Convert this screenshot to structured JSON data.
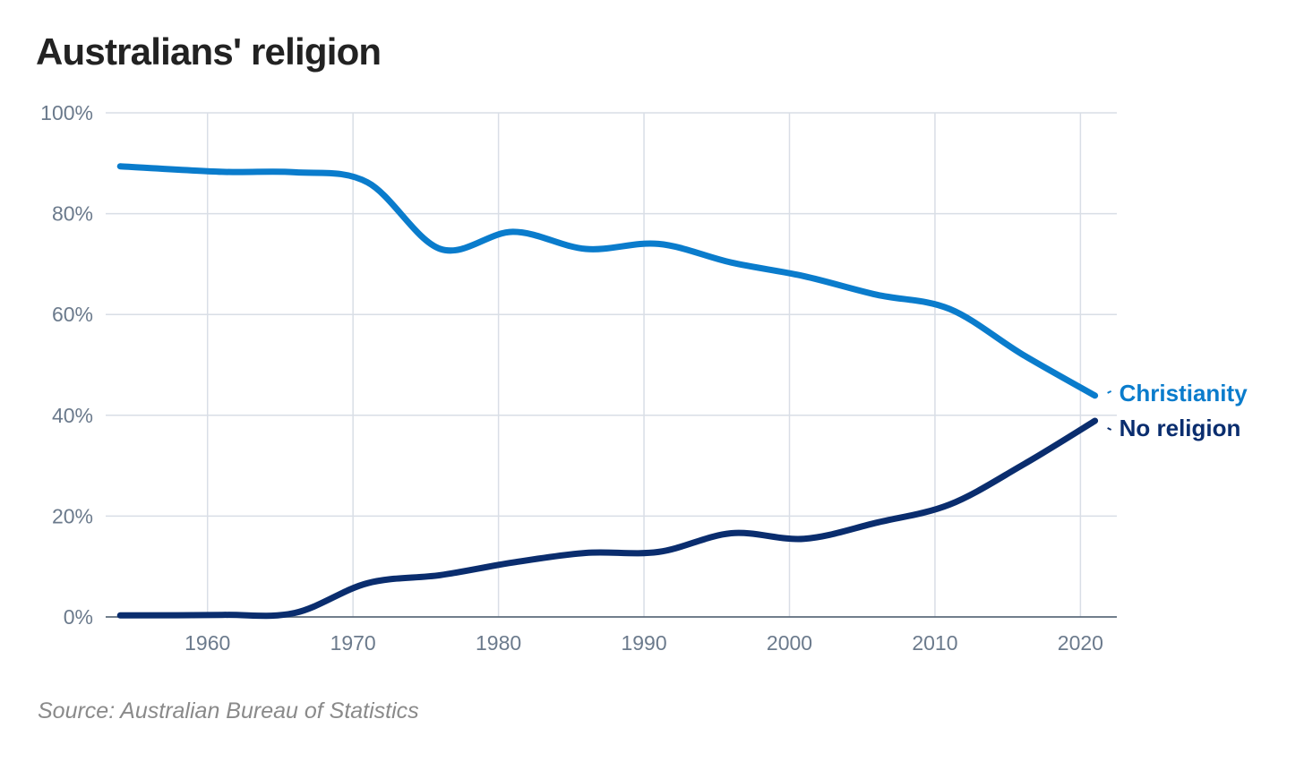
{
  "chart_data": {
    "type": "line",
    "title": "Australians' religion",
    "source": "Source: Australian Bureau of Statistics",
    "xlabel": "",
    "ylabel": "",
    "xlim": [
      1953,
      2022.5
    ],
    "ylim": [
      0,
      100
    ],
    "x_ticks": [
      1960,
      1970,
      1980,
      1990,
      2000,
      2010,
      2020
    ],
    "y_ticks": [
      0,
      20,
      40,
      60,
      80,
      100
    ],
    "y_tick_labels": [
      "0%",
      "20%",
      "40%",
      "60%",
      "80%",
      "100%"
    ],
    "grid": true,
    "legend": "direct labels at line ends",
    "series": [
      {
        "name": "Christianity",
        "color": "#0a7ccc",
        "x": [
          1954,
          1961,
          1966,
          1971,
          1976,
          1981,
          1986,
          1991,
          1996,
          2001,
          2006,
          2011,
          2016,
          2021
        ],
        "values": [
          89.4,
          88.3,
          88.2,
          86.2,
          73.0,
          76.4,
          73.0,
          74.0,
          70.3,
          67.6,
          63.9,
          61.1,
          52.1,
          43.9
        ]
      },
      {
        "name": "No religion",
        "color": "#0a2d6e",
        "x": [
          1954,
          1961,
          1966,
          1971,
          1976,
          1981,
          1986,
          1991,
          1996,
          2001,
          2006,
          2011,
          2016,
          2021
        ],
        "values": [
          0.3,
          0.4,
          0.8,
          6.7,
          8.3,
          10.8,
          12.7,
          12.9,
          16.6,
          15.5,
          18.7,
          22.3,
          30.1,
          38.9
        ]
      }
    ]
  }
}
